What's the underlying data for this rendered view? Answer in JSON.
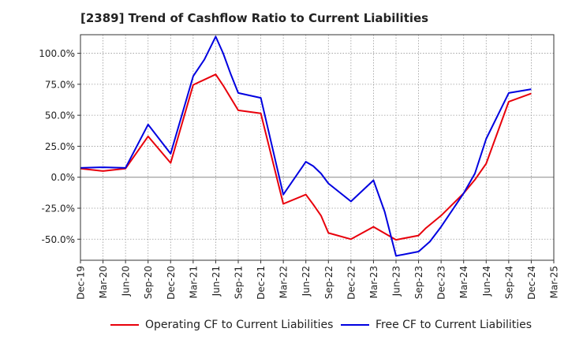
{
  "title": "[2389]  Trend of Cashflow Ratio to Current Liabilities",
  "colors": {
    "operating": "#e8000b",
    "free": "#0000e0",
    "axis": "#333333",
    "grid": "#999999",
    "zero": "#888888"
  },
  "chart_data": {
    "type": "line",
    "ylim": [
      -67,
      115
    ],
    "y_ticks": [
      100,
      75,
      50,
      25,
      0,
      -25,
      -50
    ],
    "y_tick_labels": [
      "100.0%",
      "75.0%",
      "50.0%",
      "25.0%",
      "0.0%",
      "-25.0%",
      "-50.0%"
    ],
    "x_tick_labels": [
      "Dec-19",
      "Mar-20",
      "Jun-20",
      "Sep-20",
      "Dec-20",
      "Mar-21",
      "Jun-21",
      "Sep-21",
      "Dec-21",
      "Mar-22",
      "Jun-22",
      "Sep-22",
      "Dec-22",
      "Mar-23",
      "Jun-23",
      "Sep-23",
      "Dec-23",
      "Mar-24",
      "Jun-24",
      "Sep-24",
      "Dec-24",
      "Mar-25"
    ],
    "grid": true,
    "legend_position": "bottom",
    "series": [
      {
        "name": "Operating CF to Current Liabilities",
        "color": "#e8000b",
        "points": [
          [
            0,
            7.0
          ],
          [
            1,
            5.0
          ],
          [
            2,
            7.0
          ],
          [
            3,
            33.0
          ],
          [
            4,
            11.5
          ],
          [
            5,
            74.5
          ],
          [
            6,
            83.0
          ],
          [
            6.33,
            74
          ],
          [
            7,
            54.0
          ],
          [
            8,
            51.5
          ],
          [
            9,
            -21.5
          ],
          [
            10,
            -14.0
          ],
          [
            10.33,
            -22
          ],
          [
            10.67,
            -31
          ],
          [
            11,
            -45.0
          ],
          [
            12,
            -50.0
          ],
          [
            13,
            -40.0
          ],
          [
            14,
            -50.5
          ],
          [
            15,
            -47.0
          ],
          [
            15.33,
            -41
          ],
          [
            16,
            -31.0
          ],
          [
            17,
            -13.0
          ],
          [
            17.5,
            -2
          ],
          [
            18,
            11.0
          ],
          [
            19,
            61.0
          ],
          [
            20,
            67.5
          ]
        ]
      },
      {
        "name": "Free CF to Current Liabilities",
        "color": "#0000e0",
        "points": [
          [
            0,
            7.5
          ],
          [
            1,
            8.0
          ],
          [
            2,
            7.5
          ],
          [
            3,
            42.5
          ],
          [
            4,
            19.0
          ],
          [
            5,
            81.5
          ],
          [
            5.5,
            95
          ],
          [
            6,
            113.5
          ],
          [
            6.33,
            100
          ],
          [
            6.67,
            83
          ],
          [
            7,
            68.0
          ],
          [
            8,
            64.0
          ],
          [
            9,
            -14.0
          ],
          [
            10,
            12.5
          ],
          [
            10.33,
            9
          ],
          [
            10.67,
            3
          ],
          [
            11,
            -5.0
          ],
          [
            12,
            -19.5
          ],
          [
            13,
            -2.5
          ],
          [
            13.5,
            -28
          ],
          [
            14,
            -63.5
          ],
          [
            15,
            -60.0
          ],
          [
            15.5,
            -52
          ],
          [
            16,
            -40.0
          ],
          [
            17,
            -13.0
          ],
          [
            17.5,
            3
          ],
          [
            18,
            31.0
          ],
          [
            19,
            68.0
          ],
          [
            20,
            71.0
          ]
        ]
      }
    ]
  }
}
